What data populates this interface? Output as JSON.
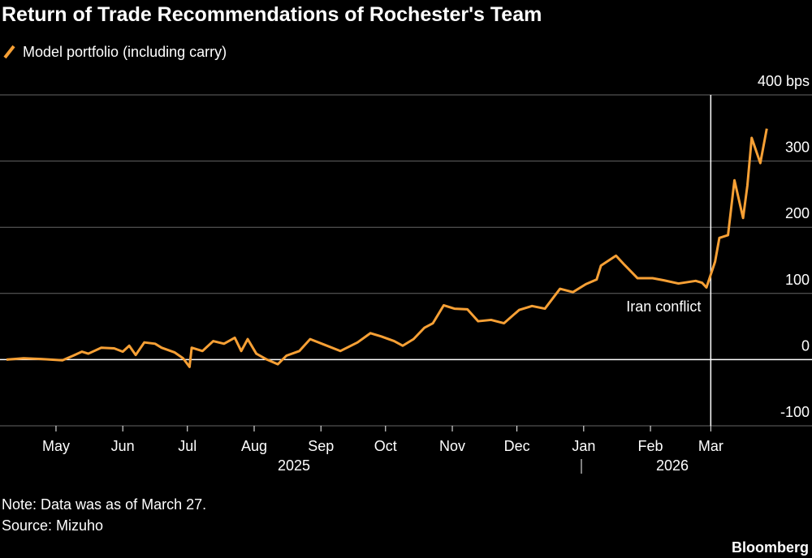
{
  "chart_data": {
    "type": "line",
    "title": "Return of Trade Recommendations of Rochester's Team",
    "note": "Note: Data was as of March 27.",
    "source": "Source: Mizuho",
    "brand": "Bloomberg",
    "annotation": {
      "text": "Iran conflict",
      "x": "2026-03-01"
    },
    "year_labels": [
      "2025",
      "2026"
    ],
    "xlim": [
      "2025-04-05",
      "2026-04-17"
    ],
    "xticks": [
      {
        "value": "2025-05-01",
        "label": "May"
      },
      {
        "value": "2025-06-01",
        "label": "Jun"
      },
      {
        "value": "2025-07-01",
        "label": "Jul"
      },
      {
        "value": "2025-08-01",
        "label": "Aug"
      },
      {
        "value": "2025-09-01",
        "label": "Sep"
      },
      {
        "value": "2025-10-01",
        "label": "Oct"
      },
      {
        "value": "2025-11-01",
        "label": "Nov"
      },
      {
        "value": "2025-12-01",
        "label": "Dec"
      },
      {
        "value": "2026-01-01",
        "label": "Jan"
      },
      {
        "value": "2026-02-01",
        "label": "Feb"
      },
      {
        "value": "2026-03-01",
        "label": "Mar"
      }
    ],
    "ylim": [
      -100,
      400
    ],
    "yticks": [
      -100,
      0,
      100,
      200,
      300,
      {
        "value": 400,
        "label": "400 bps"
      }
    ],
    "grid": true,
    "x": [
      "2025-04-08",
      "2025-04-16",
      "2025-04-24",
      "2025-05-04",
      "2025-05-09",
      "2025-05-13",
      "2025-05-16",
      "2025-05-22",
      "2025-05-28",
      "2025-06-01",
      "2025-06-04",
      "2025-06-07",
      "2025-06-11",
      "2025-06-16",
      "2025-06-19",
      "2025-06-25",
      "2025-06-29",
      "2025-07-02",
      "2025-07-03",
      "2025-07-08",
      "2025-07-13",
      "2025-07-18",
      "2025-07-23",
      "2025-07-26",
      "2025-07-29",
      "2025-08-02",
      "2025-08-07",
      "2025-08-12",
      "2025-08-16",
      "2025-08-22",
      "2025-08-27",
      "2025-09-03",
      "2025-09-10",
      "2025-09-18",
      "2025-09-24",
      "2025-09-29",
      "2025-10-05",
      "2025-10-09",
      "2025-10-14",
      "2025-10-19",
      "2025-10-23",
      "2025-10-28",
      "2025-11-02",
      "2025-11-08",
      "2025-11-13",
      "2025-11-19",
      "2025-11-25",
      "2025-12-02",
      "2025-12-08",
      "2025-12-14",
      "2025-12-21",
      "2025-12-27",
      "2026-01-02",
      "2026-01-07",
      "2026-01-09",
      "2026-01-16",
      "2026-01-20",
      "2026-01-26",
      "2026-02-02",
      "2026-02-07",
      "2026-02-14",
      "2026-02-22",
      "2026-02-25",
      "2026-02-27",
      "2026-03-03",
      "2026-03-05",
      "2026-03-09",
      "2026-03-12",
      "2026-03-16",
      "2026-03-18",
      "2026-03-20",
      "2026-03-24",
      "2026-03-27"
    ],
    "series": [
      {
        "name": "Model portfolio (including carry)",
        "color": "#f7a035",
        "values": [
          0,
          2,
          1,
          -1,
          6,
          12,
          9,
          18,
          17,
          12,
          21,
          7,
          26,
          24,
          18,
          11,
          2,
          -11,
          18,
          13,
          28,
          24,
          33,
          13,
          31,
          9,
          0,
          -7,
          6,
          13,
          31,
          22,
          13,
          26,
          40,
          35,
          28,
          21,
          31,
          48,
          55,
          82,
          77,
          76,
          58,
          60,
          55,
          75,
          81,
          77,
          107,
          102,
          114,
          121,
          142,
          157,
          143,
          123,
          123,
          120,
          115,
          119,
          116,
          109,
          148,
          184,
          188,
          271,
          214,
          263,
          335,
          297,
          349
        ]
      }
    ]
  }
}
